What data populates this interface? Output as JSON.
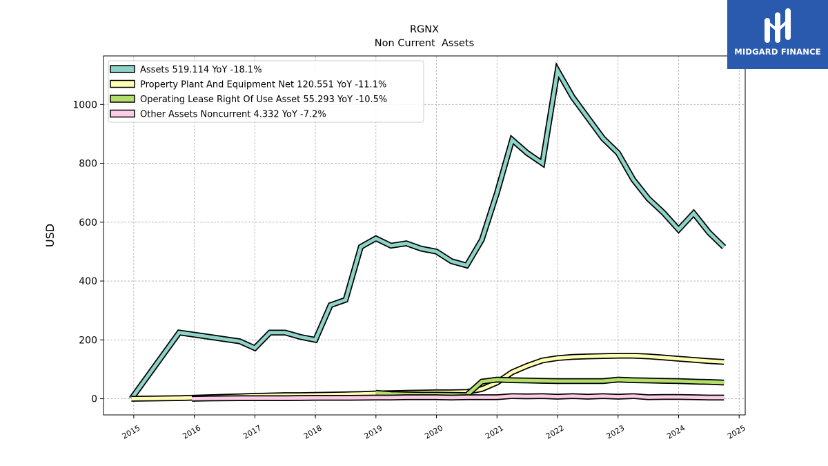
{
  "chart_data": {
    "type": "line",
    "title": "RGNX",
    "subtitle": "Non Current  Assets",
    "ylabel": "USD",
    "xlabel": "",
    "xlim": [
      2014.5,
      2025.1
    ],
    "ylim": [
      -55,
      1165
    ],
    "grid": true,
    "legend_position": "top-left",
    "x_ticks": [
      2015,
      2016,
      2017,
      2018,
      2019,
      2020,
      2021,
      2022,
      2023,
      2024,
      2025
    ],
    "x_tick_labels": [
      "2015",
      "2016",
      "2017",
      "2018",
      "2019",
      "2020",
      "2021",
      "2022",
      "2023",
      "2024",
      "2025"
    ],
    "y_ticks": [
      0,
      200,
      400,
      600,
      800,
      1000
    ],
    "y_tick_labels": [
      "0",
      "200",
      "400",
      "600",
      "800",
      "1000"
    ],
    "series": [
      {
        "name": "Assets",
        "legend_label": "Assets  519.114 YoY -18.1%",
        "color": "#8dd3c7",
        "x": [
          2014.96,
          2015.75,
          2016.25,
          2016.75,
          2017.0,
          2017.25,
          2017.5,
          2017.75,
          2018.0,
          2018.25,
          2018.5,
          2018.75,
          2019.0,
          2019.25,
          2019.5,
          2019.75,
          2020.0,
          2020.25,
          2020.5,
          2020.75,
          2021.0,
          2021.25,
          2021.5,
          2021.75,
          2022.0,
          2022.25,
          2022.5,
          2022.75,
          2023.0,
          2023.25,
          2023.5,
          2023.75,
          2024.0,
          2024.25,
          2024.5,
          2024.75
        ],
        "y": [
          0,
          225,
          210,
          195,
          172,
          225,
          225,
          210,
          200,
          318,
          336,
          516,
          545,
          520,
          528,
          510,
          500,
          467,
          453,
          540,
          700,
          880,
          835,
          800,
          1115,
          1025,
          955,
          885,
          835,
          745,
          680,
          632,
          575,
          630,
          565,
          515
        ]
      },
      {
        "name": "Property Plant And Equipment Net",
        "legend_label": "Property Plant And Equipment Net  120.551 YoY -11.1%",
        "color": "#ffffb3",
        "x": [
          2014.96,
          2015.75,
          2016.25,
          2016.75,
          2017.0,
          2017.25,
          2017.5,
          2017.75,
          2018.0,
          2018.25,
          2018.5,
          2018.75,
          2019.0,
          2019.25,
          2019.5,
          2019.75,
          2020.0,
          2020.25,
          2020.5,
          2020.75,
          2021.0,
          2021.25,
          2021.5,
          2021.75,
          2022.0,
          2022.25,
          2022.5,
          2022.75,
          2023.0,
          2023.25,
          2023.5,
          2023.75,
          2024.0,
          2024.25,
          2024.5,
          2024.75
        ],
        "y": [
          0,
          2,
          5,
          8,
          10,
          11,
          12,
          12,
          13,
          14,
          15,
          16,
          18,
          19,
          20,
          21,
          22,
          22,
          23,
          33,
          55,
          90,
          112,
          130,
          138,
          142,
          144,
          145,
          146,
          146,
          144,
          140,
          136,
          132,
          128,
          125
        ]
      },
      {
        "name": "Operating Lease Right Of Use Asset",
        "legend_label": "Operating Lease Right Of Use Asset  55.293 YoY -10.5%",
        "color": "#b3de69",
        "x": [
          2019.0,
          2019.25,
          2019.5,
          2019.75,
          2020.0,
          2020.25,
          2020.5,
          2020.75,
          2021.0,
          2021.25,
          2021.5,
          2021.75,
          2022.0,
          2022.25,
          2022.5,
          2022.75,
          2023.0,
          2023.25,
          2023.5,
          2023.75,
          2024.0,
          2024.25,
          2024.5,
          2024.75
        ],
        "y": [
          20,
          16,
          15,
          14,
          14,
          13,
          12,
          58,
          65,
          63,
          62,
          61,
          60,
          60,
          60,
          60,
          65,
          63,
          62,
          61,
          60,
          58,
          57,
          55
        ]
      },
      {
        "name": "Other Assets Noncurrent",
        "legend_label": "Other Assets Noncurrent  4.332 YoY -7.2%",
        "color": "#fccde5",
        "x": [
          2015.96,
          2016.25,
          2016.75,
          2017.0,
          2017.5,
          2018.0,
          2018.5,
          2019.0,
          2019.25,
          2019.5,
          2019.75,
          2020.0,
          2020.25,
          2020.5,
          2020.75,
          2021.0,
          2021.25,
          2021.5,
          2021.75,
          2022.0,
          2022.25,
          2022.5,
          2022.75,
          2023.0,
          2023.25,
          2023.5,
          2023.75,
          2024.0,
          2024.25,
          2024.5,
          2024.75
        ],
        "y": [
          0,
          1,
          2,
          2,
          2,
          3,
          3,
          4,
          4,
          5,
          5,
          5,
          4,
          5,
          5,
          5,
          9,
          8,
          9,
          7,
          9,
          7,
          9,
          7,
          9,
          5,
          6,
          6,
          5,
          4,
          4
        ]
      }
    ]
  },
  "logo": {
    "text": "MIDGARD FINANCE",
    "background": "#2a5aad"
  }
}
